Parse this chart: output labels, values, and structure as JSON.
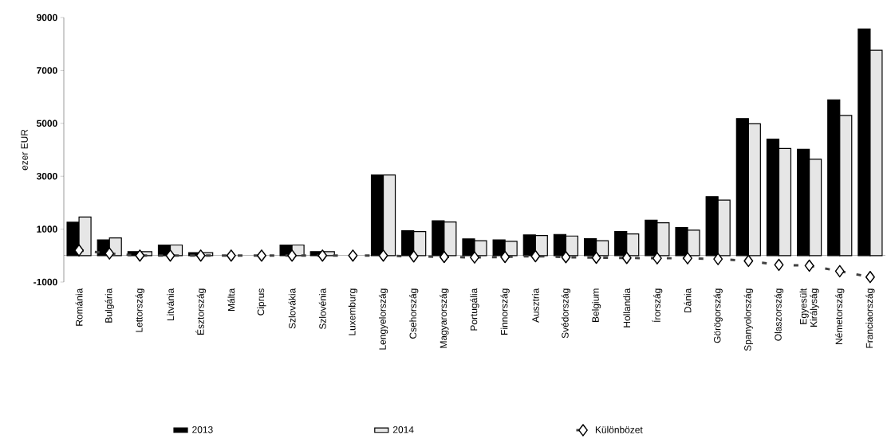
{
  "chart_data": {
    "type": "bar",
    "ylabel": "ezer EUR",
    "categories": [
      "Románia",
      "Bulgária",
      "Lettország",
      "Litvánia",
      "Észtország",
      "Málta",
      "Ciprus",
      "Szlovákia",
      "Szlovénia",
      "Luxemburg",
      "Lengyelország",
      "Csehország",
      "Magyarország",
      "Portugália",
      "Finnország",
      "Ausztria",
      "Svédország",
      "Belgium",
      "Hollandia",
      "Írország",
      "Dánia",
      "Görögország",
      "Spanyolország",
      "Olaszország",
      "Egyesült Királyság",
      "Németország",
      "Franciaország"
    ],
    "series": [
      {
        "name": "2013",
        "color": "#000000",
        "values": [
          1260,
          590,
          150,
          400,
          110,
          null,
          null,
          400,
          150,
          null,
          3050,
          940,
          1320,
          630,
          590,
          780,
          800,
          640,
          910,
          1340,
          1060,
          2230,
          5180,
          4400,
          4020,
          5890,
          8570
        ]
      },
      {
        "name": "2014",
        "color": "#e6e6e6",
        "values": [
          1460,
          670,
          150,
          400,
          110,
          null,
          null,
          400,
          150,
          null,
          3050,
          910,
          1270,
          560,
          540,
          760,
          740,
          560,
          820,
          1240,
          960,
          2100,
          4980,
          4050,
          3640,
          5300,
          7760
        ]
      },
      {
        "name": "Különbözet",
        "type": "line",
        "color": "#404040",
        "marker": "diamond",
        "line_style": "dashed",
        "values": [
          200,
          80,
          0,
          0,
          0,
          0,
          0,
          0,
          0,
          0,
          0,
          -30,
          -50,
          -70,
          -50,
          -20,
          -60,
          -80,
          -90,
          -100,
          -100,
          -130,
          -200,
          -350,
          -380,
          -590,
          -810
        ]
      }
    ],
    "ylim": [
      -1000,
      9000
    ],
    "yticks": [
      -1000,
      1000,
      3000,
      5000,
      7000,
      9000
    ],
    "grid": false,
    "legend": "bottom"
  }
}
